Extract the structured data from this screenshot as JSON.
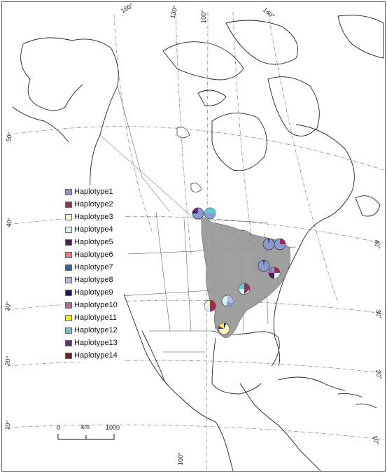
{
  "map": {
    "graticule": {
      "longitude_labels": [
        "160°",
        "130°",
        "100°",
        "140°",
        "100°"
      ],
      "latitude_labels_left": [
        "50°",
        "40°",
        "30°",
        "20°",
        "10°"
      ],
      "latitude_labels_right": [
        "40°",
        "30°",
        "20°",
        "10°"
      ]
    },
    "distribution_color": "#9a9a9a"
  },
  "legend": {
    "items": [
      {
        "label": "Haplotype1",
        "color": "#8a9bd1"
      },
      {
        "label": "Haplotype2",
        "color": "#9b2f52"
      },
      {
        "label": "Haplotype3",
        "color": "#fbf9c8"
      },
      {
        "label": "Haplotype4",
        "color": "#d7f0f2"
      },
      {
        "label": "Haplotype5",
        "color": "#4e1c5a"
      },
      {
        "label": "Haplotype6",
        "color": "#ea7f7d"
      },
      {
        "label": "Haplotype7",
        "color": "#2e62a6"
      },
      {
        "label": "Haplotype8",
        "color": "#b7b4ee"
      },
      {
        "label": "Haplotype9",
        "color": "#1a1861"
      },
      {
        "label": "Haplotype10",
        "color": "#b66ba0"
      },
      {
        "label": "Haplotype11",
        "color": "#f4ec25"
      },
      {
        "label": "Haplotype12",
        "color": "#62c6d0"
      },
      {
        "label": "Haplotype13",
        "color": "#6b2a7e"
      },
      {
        "label": "Haplotype14",
        "color": "#7a1b1e"
      }
    ]
  },
  "scale": {
    "unit": "km",
    "start": "0",
    "end": "1000"
  }
}
